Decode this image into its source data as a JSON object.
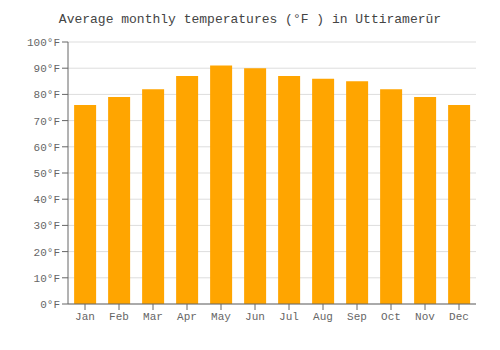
{
  "chart_data": {
    "type": "bar",
    "title": "Average monthly temperatures (°F ) in Uttiramerūr",
    "categories": [
      "Jan",
      "Feb",
      "Mar",
      "Apr",
      "May",
      "Jun",
      "Jul",
      "Aug",
      "Sep",
      "Oct",
      "Nov",
      "Dec"
    ],
    "values": [
      76,
      79,
      82,
      87,
      91,
      90,
      87,
      86,
      85,
      82,
      79,
      76
    ],
    "color": "#FFA500",
    "ylim": [
      0,
      100
    ],
    "yticks": [
      {
        "value": 0,
        "label": "0°F"
      },
      {
        "value": 10,
        "label": "10°F"
      },
      {
        "value": 20,
        "label": "20°F"
      },
      {
        "value": 30,
        "label": "30°F"
      },
      {
        "value": 40,
        "label": "40°F"
      },
      {
        "value": 50,
        "label": "50°F"
      },
      {
        "value": 60,
        "label": "60°F"
      },
      {
        "value": 70,
        "label": "70°F"
      },
      {
        "value": 80,
        "label": "80°F"
      },
      {
        "value": 90,
        "label": "90°F"
      },
      {
        "value": 100,
        "label": "100°F"
      }
    ],
    "grid": true
  }
}
